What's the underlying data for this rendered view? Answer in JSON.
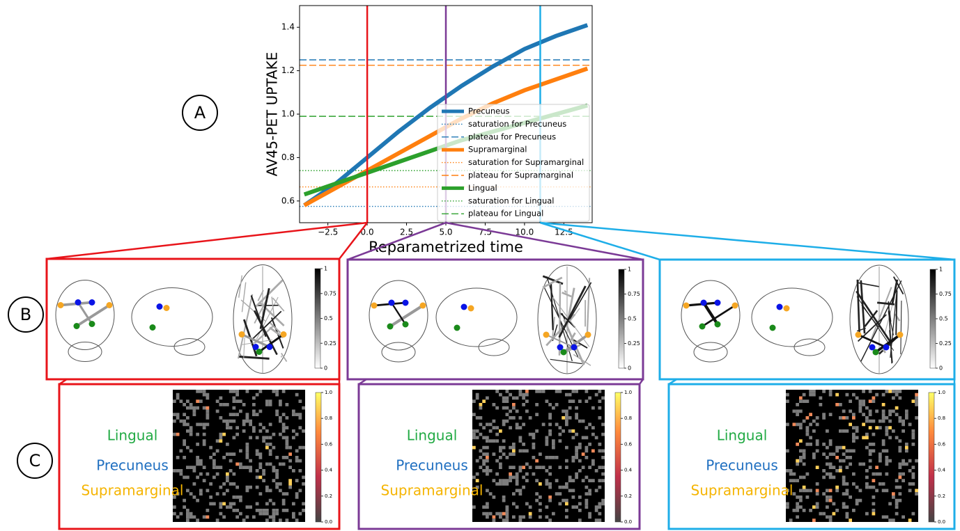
{
  "panels": {
    "a": "A",
    "b": "B",
    "c": "C"
  },
  "chart_data": {
    "type": "line",
    "ylabel": "AV45-PET UPTAKE",
    "xlabel": "Reparametrized time",
    "xlim": [
      -4.3,
      14.3
    ],
    "ylim": [
      0.5,
      1.5
    ],
    "xticks": [
      {
        "value": -2.5,
        "label": "−2.5"
      },
      {
        "value": 0,
        "label": "0.0"
      },
      2.5,
      {
        "value": 5,
        "label": "5.0"
      },
      7.5,
      {
        "value": 10,
        "label": "10.0"
      },
      12.5
    ],
    "yticks": [
      0.6,
      0.8,
      {
        "value": 1,
        "label": "1.0"
      },
      1.2,
      1.4
    ],
    "x": [
      -4,
      -2,
      0,
      2,
      4,
      6,
      8,
      10,
      12,
      14
    ],
    "series": [
      {
        "name": "Precuneus",
        "color": "#1f77b4",
        "style": "solid",
        "values": [
          0.58,
          0.68,
          0.8,
          0.92,
          1.03,
          1.13,
          1.22,
          1.3,
          1.36,
          1.41
        ]
      },
      {
        "name": "saturation for Precuneus",
        "color": "#1f77b4",
        "style": "dotted",
        "values": [
          0.575,
          0.575,
          0.575,
          0.575,
          0.575,
          0.575,
          0.575,
          0.575,
          0.575,
          0.575
        ]
      },
      {
        "name": "plateau for Precuneus",
        "color": "#1f77b4",
        "style": "dashed",
        "values": [
          1.25,
          1.25,
          1.25,
          1.25,
          1.25,
          1.25,
          1.25,
          1.25,
          1.25,
          1.25
        ]
      },
      {
        "name": "Supramarginal",
        "color": "#ff7f0e",
        "style": "solid",
        "values": [
          0.58,
          0.66,
          0.74,
          0.82,
          0.9,
          0.98,
          1.05,
          1.11,
          1.16,
          1.21
        ]
      },
      {
        "name": "saturation for Supramarginal",
        "color": "#ff7f0e",
        "style": "dotted",
        "values": [
          0.665,
          0.665,
          0.665,
          0.665,
          0.665,
          0.665,
          0.665,
          0.665,
          0.665,
          0.665
        ]
      },
      {
        "name": "plateau for Supramarginal",
        "color": "#ff7f0e",
        "style": "dashed",
        "values": [
          1.225,
          1.225,
          1.225,
          1.225,
          1.225,
          1.225,
          1.225,
          1.225,
          1.225,
          1.225
        ]
      },
      {
        "name": "Lingual",
        "color": "#2ca02c",
        "style": "solid",
        "values": [
          0.63,
          0.68,
          0.73,
          0.78,
          0.83,
          0.88,
          0.92,
          0.96,
          1.0,
          1.04
        ]
      },
      {
        "name": "saturation for Lingual",
        "color": "#2ca02c",
        "style": "dotted",
        "values": [
          0.74,
          0.74,
          0.74,
          0.74,
          0.74,
          0.74,
          0.74,
          0.74,
          0.74,
          0.74
        ]
      },
      {
        "name": "plateau for Lingual",
        "color": "#2ca02c",
        "style": "dashed",
        "values": [
          0.99,
          0.99,
          0.99,
          0.99,
          0.99,
          0.99,
          0.99,
          0.99,
          0.99,
          0.99
        ]
      }
    ],
    "vlines": [
      {
        "value": 0,
        "color": "#e8141a"
      },
      {
        "value": 5,
        "color": "#7b3a96"
      },
      {
        "value": 11,
        "color": "#1eaee8"
      }
    ]
  },
  "panel_b": {
    "colorbar_ticks": [
      0,
      0.25,
      0.5,
      0.75,
      1
    ]
  },
  "panel_c": {
    "colorbar_ticks": [
      {
        "value": 0,
        "label": "0.0"
      },
      0.2,
      0.4,
      0.6,
      0.8,
      {
        "value": 1,
        "label": "1.0"
      }
    ],
    "regions": [
      {
        "label": "Lingual",
        "color": "#22aa44"
      },
      {
        "label": "Precuneus",
        "color": "#1f6fc0"
      },
      {
        "label": "Supramarginal",
        "color": "#f5b400"
      }
    ]
  }
}
